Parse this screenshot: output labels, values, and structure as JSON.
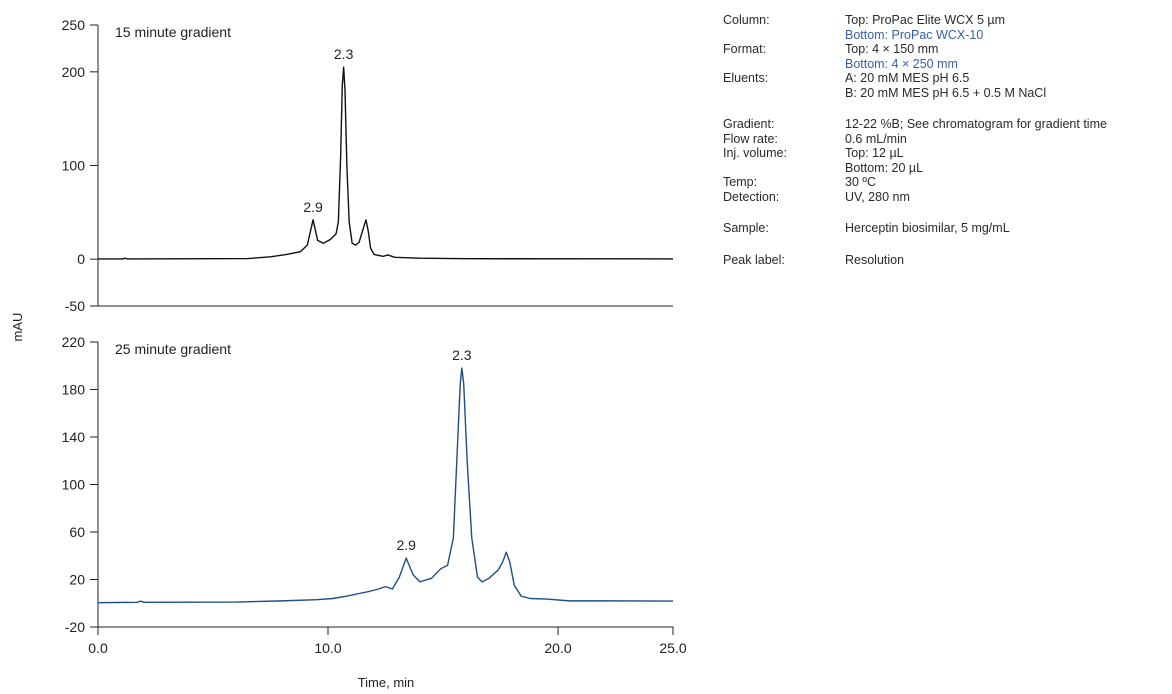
{
  "chart_data": {
    "type": "line",
    "ylabel": "mAU",
    "xlabel": "Time, min",
    "xlim": [
      0,
      25
    ],
    "x_ticks": [
      "0.0",
      "10.0",
      "20.0",
      "25.0"
    ],
    "panels": [
      {
        "id": "top",
        "label": "15 minute gradient",
        "color": "#111111",
        "ylim": [
          -50,
          250
        ],
        "y_ticks": [
          "250",
          "200",
          "100",
          "0",
          "-50"
        ],
        "y_tick_values": [
          250,
          200,
          100,
          0,
          -50
        ],
        "baseline": 0.3,
        "points": [
          [
            0,
            0.2
          ],
          [
            1.1,
            0.3
          ],
          [
            1.15,
            1.2
          ],
          [
            1.25,
            0.3
          ],
          [
            5,
            0.5
          ],
          [
            6.5,
            0.6
          ],
          [
            7.5,
            2.5
          ],
          [
            8.2,
            5
          ],
          [
            8.8,
            8
          ],
          [
            9.1,
            15
          ],
          [
            9.35,
            42
          ],
          [
            9.55,
            20
          ],
          [
            9.8,
            17
          ],
          [
            10.1,
            21
          ],
          [
            10.35,
            27
          ],
          [
            10.45,
            40
          ],
          [
            10.55,
            110
          ],
          [
            10.62,
            185
          ],
          [
            10.68,
            205
          ],
          [
            10.74,
            180
          ],
          [
            10.82,
            100
          ],
          [
            10.92,
            40
          ],
          [
            11.05,
            17
          ],
          [
            11.2,
            15
          ],
          [
            11.35,
            18
          ],
          [
            11.55,
            34
          ],
          [
            11.65,
            42
          ],
          [
            11.75,
            30
          ],
          [
            11.85,
            12
          ],
          [
            12.0,
            5
          ],
          [
            12.4,
            3
          ],
          [
            12.6,
            4.5
          ],
          [
            12.9,
            2
          ],
          [
            14,
            1
          ],
          [
            16,
            0.5
          ],
          [
            25,
            0.3
          ]
        ],
        "peak_labels": [
          {
            "text": "2.3",
            "x": 10.68,
            "y": 205
          },
          {
            "text": "2.9",
            "x": 9.35,
            "y": 42
          }
        ]
      },
      {
        "id": "bottom",
        "label": "25 minute gradient",
        "color": "#1f4e86",
        "ylim": [
          -20,
          220
        ],
        "y_ticks": [
          "220",
          "180",
          "140",
          "100",
          "60",
          "20",
          "-20"
        ],
        "y_tick_values": [
          220,
          180,
          140,
          100,
          60,
          20,
          -20
        ],
        "baseline": 0.5,
        "points": [
          [
            0,
            0.5
          ],
          [
            1.7,
            0.8
          ],
          [
            1.85,
            1.8
          ],
          [
            2.0,
            0.8
          ],
          [
            6,
            1
          ],
          [
            8,
            2
          ],
          [
            9.5,
            3
          ],
          [
            10.2,
            4
          ],
          [
            10.8,
            6
          ],
          [
            11.3,
            8
          ],
          [
            11.8,
            10
          ],
          [
            12.2,
            12
          ],
          [
            12.5,
            14
          ],
          [
            12.8,
            12
          ],
          [
            13.1,
            22
          ],
          [
            13.4,
            38
          ],
          [
            13.7,
            24
          ],
          [
            14.0,
            18
          ],
          [
            14.5,
            21
          ],
          [
            14.9,
            29
          ],
          [
            15.2,
            32
          ],
          [
            15.45,
            55
          ],
          [
            15.6,
            120
          ],
          [
            15.75,
            185
          ],
          [
            15.82,
            198
          ],
          [
            15.9,
            185
          ],
          [
            16.05,
            120
          ],
          [
            16.25,
            55
          ],
          [
            16.5,
            22
          ],
          [
            16.7,
            18
          ],
          [
            17.0,
            21
          ],
          [
            17.4,
            28
          ],
          [
            17.6,
            35
          ],
          [
            17.75,
            43
          ],
          [
            17.9,
            35
          ],
          [
            18.1,
            15
          ],
          [
            18.4,
            6
          ],
          [
            18.8,
            4
          ],
          [
            19.5,
            3.5
          ],
          [
            20.5,
            2
          ],
          [
            22,
            2
          ],
          [
            25,
            1.8
          ]
        ],
        "peak_labels": [
          {
            "text": "2.3",
            "x": 15.82,
            "y": 198
          },
          {
            "text": "2.9",
            "x": 13.4,
            "y": 38
          }
        ]
      }
    ]
  },
  "conditions": {
    "rows": [
      {
        "label": "Column:",
        "lines": [
          {
            "text": "Top: ProPac Elite WCX 5 µm",
            "accent": false
          },
          {
            "text": "Bottom: ProPac WCX-10",
            "accent": true
          }
        ],
        "gap_after": false
      },
      {
        "label": "Format:",
        "lines": [
          {
            "text": "Top: 4 × 150 mm",
            "accent": false
          },
          {
            "text": "Bottom: 4 × 250 mm",
            "accent": true
          }
        ],
        "gap_after": false
      },
      {
        "label": "Eluents:",
        "lines": [
          {
            "text": "A: 20 mM MES pH 6.5",
            "accent": false
          },
          {
            "text": "B: 20 mM MES pH 6.5 + 0.5 M NaCl",
            "accent": false
          }
        ],
        "gap_after": true
      },
      {
        "label": "Gradient:",
        "lines": [
          {
            "text": "12-22 %B; See chromatogram for gradient time",
            "accent": false
          }
        ],
        "gap_after": false
      },
      {
        "label": "Flow rate:",
        "lines": [
          {
            "text": "0.6 mL/min",
            "accent": false
          }
        ],
        "gap_after": false
      },
      {
        "label": "Inj. volume:",
        "lines": [
          {
            "text": "Top: 12 µL",
            "accent": false
          },
          {
            "text": "Bottom: 20 µL",
            "accent": false
          }
        ],
        "gap_after": false
      },
      {
        "label": "Temp:",
        "lines": [
          {
            "text": "30 ºC",
            "accent": false
          }
        ],
        "gap_after": false
      },
      {
        "label": "Detection:",
        "lines": [
          {
            "text": "UV, 280 nm",
            "accent": false
          }
        ],
        "gap_after": true
      },
      {
        "label": "Sample:",
        "lines": [
          {
            "text": "Herceptin biosimilar, 5 mg/mL",
            "accent": false
          }
        ],
        "gap_after": true
      },
      {
        "label": "Peak label:",
        "lines": [
          {
            "text": "Resolution",
            "accent": false
          }
        ],
        "gap_after": false
      }
    ],
    "accent_color": "#3b5ea8"
  }
}
